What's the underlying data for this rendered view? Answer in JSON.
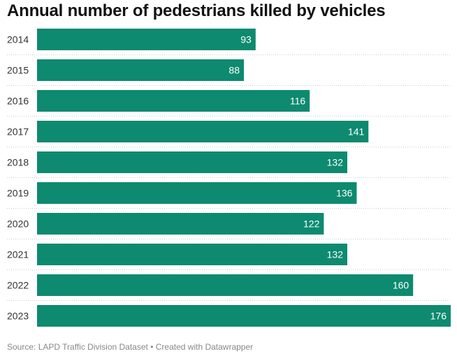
{
  "chart_data": {
    "type": "bar",
    "orientation": "horizontal",
    "title": "Annual number of pedestrians killed by vehicles",
    "categories": [
      "2014",
      "2015",
      "2016",
      "2017",
      "2018",
      "2019",
      "2020",
      "2021",
      "2022",
      "2023"
    ],
    "values": [
      93,
      88,
      116,
      141,
      132,
      136,
      122,
      132,
      160,
      176
    ],
    "bar_color": "#0d8a6f",
    "label_color": "#ffffff",
    "xlim": [
      0,
      176
    ],
    "grid": false,
    "legend": "none"
  },
  "footer": {
    "source": "Source: LAPD Traffic Division Dataset",
    "separator": " • ",
    "credit": "Created with Datawrapper"
  }
}
